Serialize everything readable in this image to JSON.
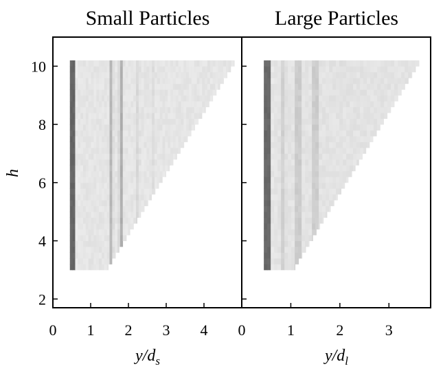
{
  "chart_data": [
    {
      "type": "heatmap",
      "title": "Small Particles",
      "xlabel": "y/d",
      "xlabel_sub": "s",
      "ylabel": "h",
      "xlim": [
        0,
        5.0
      ],
      "ylim": [
        1.7,
        11.0
      ],
      "xticks": [
        0,
        1,
        2,
        3,
        4
      ],
      "xtick_labels": [
        "0",
        "1",
        "2",
        "3",
        "4"
      ],
      "yticks": [
        2,
        4,
        6,
        8,
        10
      ],
      "ytick_labels": [
        "2",
        "4",
        "6",
        "8",
        "10"
      ],
      "h_range": [
        3.0,
        10.2
      ],
      "wedge_edge": [
        [
          3.0,
          1.42
        ],
        [
          10.2,
          4.85
        ]
      ],
      "bands": [
        {
          "y": 0.52,
          "intensity": 0.92,
          "width": 0.07
        },
        {
          "y": 1.55,
          "intensity": 0.35,
          "width": 0.06
        },
        {
          "y": 1.8,
          "intensity": 0.4,
          "width": 0.06
        },
        {
          "y": 2.25,
          "intensity": 0.18,
          "width": 0.1
        },
        {
          "y": 2.65,
          "intensity": 0.15,
          "width": 0.1
        },
        {
          "y": 3.2,
          "intensity": 0.12,
          "width": 0.1
        },
        {
          "y": 3.7,
          "intensity": 0.12,
          "width": 0.1
        }
      ],
      "background_intensity": 0.12
    },
    {
      "type": "heatmap",
      "title": "Large Particles",
      "xlabel": "y/d",
      "xlabel_sub": "l",
      "ylabel": "",
      "xlim": [
        0,
        3.85
      ],
      "ylim": [
        1.7,
        11.0
      ],
      "xticks": [
        0,
        1,
        2,
        3
      ],
      "xtick_labels": [
        "0",
        "1",
        "2",
        "3"
      ],
      "yticks": [
        2,
        4,
        6,
        8,
        10
      ],
      "ytick_labels": [],
      "h_range": [
        3.0,
        10.2
      ],
      "wedge_edge": [
        [
          3.0,
          1.05
        ],
        [
          10.2,
          3.65
        ]
      ],
      "bands": [
        {
          "y": 0.52,
          "intensity": 0.9,
          "width": 0.07
        },
        {
          "y": 0.85,
          "intensity": 0.22,
          "width": 0.08
        },
        {
          "y": 1.15,
          "intensity": 0.3,
          "width": 0.07
        },
        {
          "y": 1.5,
          "intensity": 0.3,
          "width": 0.07
        },
        {
          "y": 2.0,
          "intensity": 0.15,
          "width": 0.1
        },
        {
          "y": 2.6,
          "intensity": 0.13,
          "width": 0.1
        },
        {
          "y": 3.2,
          "intensity": 0.12,
          "width": 0.1
        }
      ],
      "background_intensity": 0.13
    }
  ]
}
